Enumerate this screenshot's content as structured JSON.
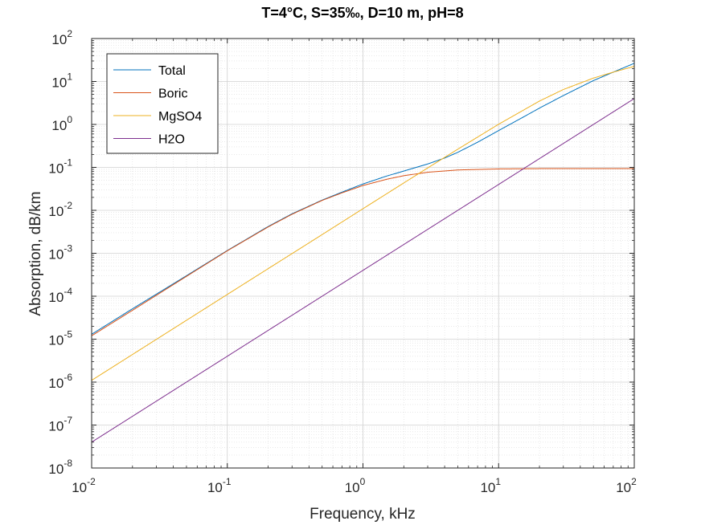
{
  "chart_data": {
    "type": "line",
    "title": "T=4°C, S=35‰, D=10 m, pH=8",
    "xlabel": "Frequency, kHz",
    "ylabel": "Absorption, dB/km",
    "x_scale": "log",
    "y_scale": "log",
    "xlim": [
      0.01,
      100
    ],
    "ylim": [
      1e-08,
      100
    ],
    "grid": true,
    "minor_grid": true,
    "legend_position": "top-left",
    "x_ticks": [
      {
        "base": "10",
        "exp": "-2",
        "value": 0.01
      },
      {
        "base": "10",
        "exp": "-1",
        "value": 0.1
      },
      {
        "base": "10",
        "exp": "0",
        "value": 1
      },
      {
        "base": "10",
        "exp": "1",
        "value": 10
      },
      {
        "base": "10",
        "exp": "2",
        "value": 100
      }
    ],
    "y_ticks": [
      {
        "base": "10",
        "exp": "-8",
        "value": 1e-08
      },
      {
        "base": "10",
        "exp": "-7",
        "value": 1e-07
      },
      {
        "base": "10",
        "exp": "-6",
        "value": 1e-06
      },
      {
        "base": "10",
        "exp": "-5",
        "value": 1e-05
      },
      {
        "base": "10",
        "exp": "-4",
        "value": 0.0001
      },
      {
        "base": "10",
        "exp": "-3",
        "value": 0.001
      },
      {
        "base": "10",
        "exp": "-2",
        "value": 0.01
      },
      {
        "base": "10",
        "exp": "-1",
        "value": 0.1
      },
      {
        "base": "10",
        "exp": "0",
        "value": 1
      },
      {
        "base": "10",
        "exp": "1",
        "value": 10
      },
      {
        "base": "10",
        "exp": "2",
        "value": 100
      }
    ],
    "series": [
      {
        "name": "Total",
        "color": "#0072BD",
        "x": [
          0.01,
          0.02,
          0.05,
          0.1,
          0.2,
          0.3,
          0.5,
          0.7,
          1,
          1.5,
          2,
          3,
          4,
          5,
          7,
          10,
          15,
          20,
          30,
          50,
          70,
          100
        ],
        "y": [
          1.3e-05,
          5.1e-05,
          0.0003,
          0.00116,
          0.0042,
          0.0083,
          0.0173,
          0.0265,
          0.041,
          0.063,
          0.082,
          0.12,
          0.165,
          0.224,
          0.385,
          0.72,
          1.45,
          2.4,
          4.7,
          10.5,
          16.5,
          26.5
        ]
      },
      {
        "name": "Boric",
        "color": "#D95319",
        "x": [
          0.01,
          0.02,
          0.05,
          0.1,
          0.2,
          0.3,
          0.5,
          0.7,
          1,
          1.5,
          2,
          3,
          5,
          10,
          20,
          50,
          100
        ],
        "y": [
          1.2e-05,
          4.7e-05,
          0.00029,
          0.00114,
          0.0041,
          0.0081,
          0.017,
          0.0255,
          0.0378,
          0.053,
          0.064,
          0.077,
          0.087,
          0.092,
          0.0935,
          0.094,
          0.094
        ]
      },
      {
        "name": "MgSO4",
        "color": "#EDB120",
        "x": [
          0.01,
          0.1,
          0.5,
          1,
          2,
          3,
          5,
          10,
          20,
          30,
          50,
          70,
          100
        ],
        "y": [
          1.1e-06,
          0.00011,
          0.00272,
          0.0109,
          0.0434,
          0.097,
          0.265,
          1.01,
          3.5,
          6.5,
          12.0,
          16.5,
          22.5
        ]
      },
      {
        "name": "H2O",
        "color": "#7E2F8E",
        "x": [
          0.01,
          100
        ],
        "y": [
          4e-08,
          4.0
        ]
      }
    ]
  }
}
